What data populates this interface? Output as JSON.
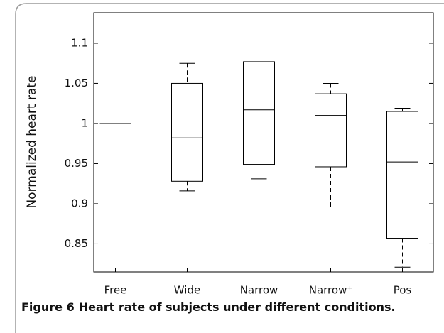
{
  "chart_data": {
    "type": "box",
    "y_label": "Normalized heart rate",
    "categories": [
      "Free",
      "Wide",
      "Narrow",
      "Narrow⁺",
      "Pos"
    ],
    "boxes": [
      {
        "low": 1.0,
        "q1": 1.0,
        "median": 1.0,
        "q3": 1.0,
        "high": 1.0
      },
      {
        "low": 0.916,
        "q1": 0.928,
        "median": 0.982,
        "q3": 1.05,
        "high": 1.075
      },
      {
        "low": 0.931,
        "q1": 0.949,
        "median": 1.017,
        "q3": 1.077,
        "high": 1.088
      },
      {
        "low": 0.896,
        "q1": 0.946,
        "median": 1.01,
        "q3": 1.037,
        "high": 1.05
      },
      {
        "low": 0.821,
        "q1": 0.857,
        "median": 0.952,
        "q3": 1.015,
        "high": 1.019
      }
    ],
    "color": "#000000",
    "ylim": [
      0.815,
      1.138
    ],
    "yticks": [
      0.85,
      0.9,
      0.95,
      1,
      1.05,
      1.1
    ]
  },
  "caption": {
    "label": "Figure 6",
    "text": "Heart rate of subjects under different conditions."
  }
}
